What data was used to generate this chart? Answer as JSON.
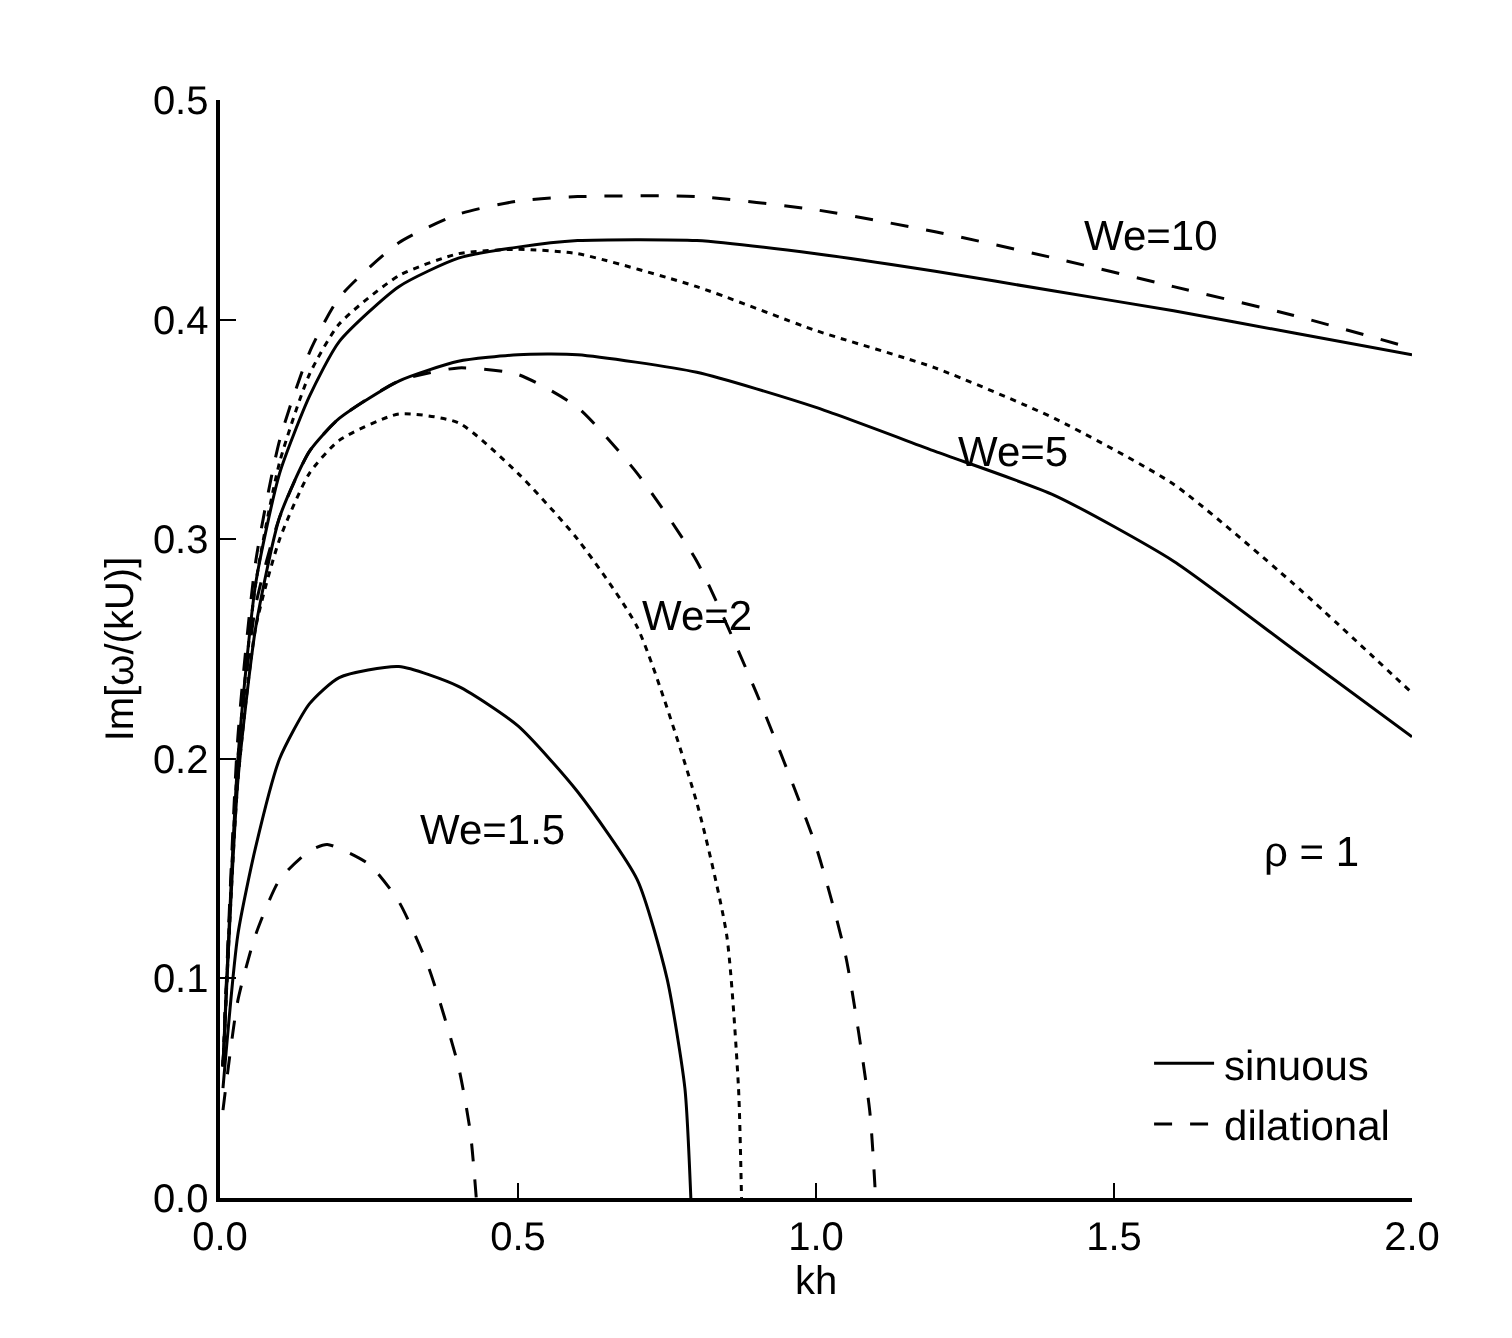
{
  "chart_data": {
    "type": "line",
    "xlabel": "kh",
    "ylabel": "Im[ω/(kU)]",
    "xlim": [
      0,
      2
    ],
    "ylim": [
      0,
      0.5
    ],
    "xticks": [
      {
        "value": 0,
        "label": "0.0"
      },
      {
        "value": 0.5,
        "label": "0.5"
      },
      {
        "value": 1,
        "label": "1.0"
      },
      {
        "value": 1.5,
        "label": "1.5"
      },
      {
        "value": 2,
        "label": "2.0"
      }
    ],
    "yticks": [
      {
        "value": 0,
        "label": "0.0"
      },
      0.1,
      0.2,
      0.3,
      0.4,
      0.5
    ],
    "legend": "bottom right",
    "marker": "none",
    "series": [
      {
        "name": "sinuous",
        "color": "#000000",
        "line_style": "solid",
        "x": [
          0.005,
          0.03,
          0.06,
          0.1,
          0.15,
          0.2,
          0.3,
          0.4,
          0.5,
          0.6,
          0.8,
          1.0,
          1.2,
          1.4,
          1.6,
          1.8,
          2.0
        ],
        "values": [
          0.06,
          0.2,
          0.28,
          0.33,
          0.365,
          0.39,
          0.415,
          0.428,
          0.433,
          0.436,
          0.436,
          0.43,
          0.422,
          0.413,
          0.404,
          0.394,
          0.384
        ]
      },
      {
        "name": "dilational",
        "color": "#000000",
        "line_style": "dashed",
        "x": [
          0.005,
          0.03,
          0.06,
          0.1,
          0.15,
          0.2,
          0.3,
          0.4,
          0.5,
          0.6,
          0.8,
          1.0,
          1.2,
          1.4,
          1.6,
          1.8,
          2.0
        ],
        "values": [
          0.06,
          0.21,
          0.29,
          0.345,
          0.385,
          0.41,
          0.435,
          0.448,
          0.454,
          0.456,
          0.456,
          0.45,
          0.44,
          0.428,
          0.415,
          0.402,
          0.387
        ]
      },
      {
        "color": "#000000",
        "line_style": "solid",
        "x": [
          0.005,
          0.03,
          0.06,
          0.1,
          0.15,
          0.2,
          0.3,
          0.4,
          0.5,
          0.6,
          0.8,
          1.0,
          1.2,
          1.4,
          1.6,
          1.8,
          2.0
        ],
        "values": [
          0.06,
          0.19,
          0.26,
          0.31,
          0.34,
          0.355,
          0.372,
          0.381,
          0.384,
          0.384,
          0.376,
          0.36,
          0.34,
          0.32,
          0.29,
          0.25,
          0.21
        ]
      },
      {
        "color": "#000000",
        "line_style": "dotted",
        "x": [
          0.005,
          0.03,
          0.06,
          0.1,
          0.15,
          0.2,
          0.3,
          0.4,
          0.5,
          0.6,
          0.8,
          1.0,
          1.2,
          1.4,
          1.6,
          1.8,
          2.0
        ],
        "values": [
          0.06,
          0.2,
          0.28,
          0.335,
          0.375,
          0.398,
          0.42,
          0.43,
          0.432,
          0.43,
          0.415,
          0.395,
          0.378,
          0.355,
          0.325,
          0.28,
          0.23
        ]
      },
      {
        "color": "#000000",
        "line_style": "dotted",
        "x": [
          0.005,
          0.03,
          0.06,
          0.1,
          0.15,
          0.2,
          0.3,
          0.4,
          0.5,
          0.6,
          0.7,
          0.8,
          0.85,
          0.87,
          0.875
        ],
        "values": [
          0.06,
          0.19,
          0.26,
          0.3,
          0.33,
          0.345,
          0.357,
          0.353,
          0.33,
          0.3,
          0.26,
          0.18,
          0.12,
          0.05,
          0.0
        ]
      },
      {
        "color": "#000000",
        "line_style": "dashed",
        "x": [
          0.005,
          0.03,
          0.06,
          0.1,
          0.15,
          0.2,
          0.3,
          0.4,
          0.5,
          0.6,
          0.7,
          0.8,
          0.9,
          1.0,
          1.05,
          1.09,
          1.1
        ],
        "values": [
          0.06,
          0.2,
          0.27,
          0.31,
          0.34,
          0.355,
          0.372,
          0.378,
          0.375,
          0.36,
          0.33,
          0.29,
          0.23,
          0.16,
          0.11,
          0.04,
          0.0
        ]
      },
      {
        "color": "#000000",
        "line_style": "solid",
        "x": [
          0.005,
          0.03,
          0.06,
          0.1,
          0.15,
          0.2,
          0.3,
          0.4,
          0.5,
          0.6,
          0.7,
          0.75,
          0.78,
          0.79
        ],
        "values": [
          0.05,
          0.12,
          0.16,
          0.2,
          0.225,
          0.237,
          0.242,
          0.233,
          0.215,
          0.185,
          0.145,
          0.1,
          0.05,
          0.0
        ]
      },
      {
        "color": "#000000",
        "line_style": "dashed",
        "x": [
          0.005,
          0.03,
          0.06,
          0.1,
          0.15,
          0.18,
          0.25,
          0.3,
          0.35,
          0.4,
          0.42,
          0.43
        ],
        "values": [
          0.04,
          0.09,
          0.12,
          0.145,
          0.158,
          0.161,
          0.152,
          0.135,
          0.105,
          0.06,
          0.03,
          0.0
        ]
      }
    ],
    "annotations": [
      "We=10",
      "We=5",
      "We=2",
      "We=1.5",
      "ρ = 1"
    ]
  }
}
